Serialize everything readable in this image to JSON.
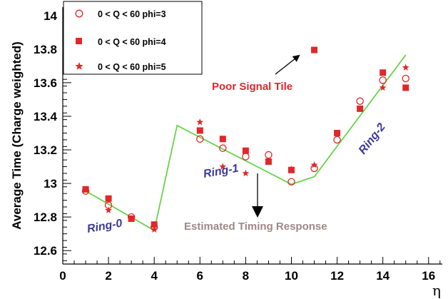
{
  "chart_data": {
    "type": "scatter",
    "title": "",
    "xlabel": "η",
    "ylabel": "Average Time (Charge weighted)",
    "xlim": [
      0,
      16.6
    ],
    "ylim": [
      12.52,
      14.05
    ],
    "x_ticks": [
      0,
      2,
      4,
      6,
      8,
      10,
      12,
      14,
      16
    ],
    "y_ticks": [
      12.6,
      12.8,
      13,
      13.2,
      13.4,
      13.6,
      13.8,
      14
    ],
    "y_tick_labels": [
      "12.6",
      "12.8",
      "13",
      "13.2",
      "13.4",
      "13.6",
      "13.8",
      "14"
    ],
    "grid": false,
    "legend_position": "top-left",
    "colors": {
      "points": "#e0282a",
      "curve": "#66d44a",
      "ring_labels": "#3a3a9a",
      "estimated_label": "#a08888",
      "poor_label": "#e0282a",
      "axis": "#000000"
    },
    "series": [
      {
        "name": "0 < Q < 60 phi=3",
        "marker": "open-circle",
        "x": [
          1,
          2,
          3,
          4,
          6,
          7,
          8,
          9,
          10,
          11,
          12,
          13,
          14,
          15
        ],
        "y": [
          12.955,
          12.87,
          12.8,
          12.74,
          13.265,
          13.21,
          13.16,
          13.17,
          13.01,
          13.09,
          13.26,
          13.49,
          13.615,
          13.625
        ]
      },
      {
        "name": "0 < Q < 60 phi=4",
        "marker": "filled-square",
        "x": [
          1,
          2,
          3,
          4,
          6,
          7,
          8,
          9,
          10,
          11,
          12,
          13,
          14,
          15
        ],
        "y": [
          12.965,
          12.91,
          12.79,
          12.755,
          13.315,
          13.265,
          13.195,
          13.13,
          13.08,
          13.795,
          13.3,
          13.445,
          13.66,
          13.57
        ]
      },
      {
        "name": "0 < Q < 60 phi=5",
        "marker": "star",
        "x": [
          1,
          2,
          4,
          6,
          7,
          8,
          10,
          11,
          14,
          15
        ],
        "y": [
          12.96,
          12.84,
          12.725,
          13.365,
          13.1,
          13.06,
          13.085,
          13.11,
          13.57,
          13.69
        ]
      }
    ],
    "estimated_curve": {
      "x": [
        1,
        4,
        5,
        10,
        11,
        15
      ],
      "y": [
        12.955,
        12.72,
        13.345,
        12.995,
        13.04,
        13.765
      ]
    },
    "annotations": {
      "poor_signal": "Poor Signal Tile",
      "estimated": "Estimated Timing Response",
      "ring0": "Ring-0",
      "ring1": "Ring-1",
      "ring2": "Ring-2"
    }
  }
}
